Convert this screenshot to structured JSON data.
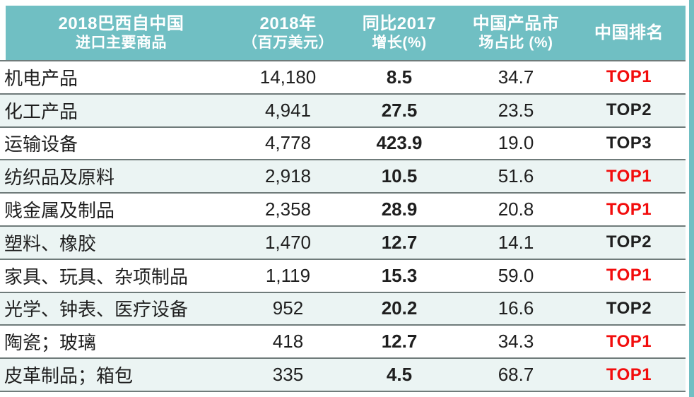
{
  "colors": {
    "accent": "#70bfc3",
    "row_tint": "#ebf4f3",
    "line": "#6f7b7a",
    "rank_red": "#f20d0d",
    "text": "#1f1f1f",
    "header_text": "#ffffff"
  },
  "header": {
    "col1": {
      "line1": "2018巴西自中国",
      "line2": "进口主要商品"
    },
    "col2": {
      "line1": "2018年",
      "line2": "（百万美元）"
    },
    "col3": {
      "line1": "同比2017",
      "line2": "增长(%)"
    },
    "col4": {
      "line1": "中国产品市",
      "line2": "场占比 (%)"
    },
    "col5": {
      "line1": "中国排名",
      "line2": ""
    }
  },
  "chart_data": {
    "type": "table",
    "title": "2018巴西自中国进口主要商品",
    "columns": [
      "2018巴西自中国进口主要商品",
      "2018年（百万美元）",
      "同比2017增长(%)",
      "中国产品市场占比 (%)",
      "中国排名"
    ],
    "rows": [
      {
        "commodity": "机电产品",
        "imports_2018_musd": "14,180",
        "yoy_growth_pct": "8.5",
        "china_market_share_pct": "34.7",
        "china_rank": "TOP1",
        "rank_is_top1": true
      },
      {
        "commodity": "化工产品",
        "imports_2018_musd": "4,941",
        "yoy_growth_pct": "27.5",
        "china_market_share_pct": "23.5",
        "china_rank": "TOP2",
        "rank_is_top1": false
      },
      {
        "commodity": "运输设备",
        "imports_2018_musd": "4,778",
        "yoy_growth_pct": "423.9",
        "china_market_share_pct": "19.0",
        "china_rank": "TOP3",
        "rank_is_top1": false
      },
      {
        "commodity": "纺织品及原料",
        "imports_2018_musd": "2,918",
        "yoy_growth_pct": "10.5",
        "china_market_share_pct": "51.6",
        "china_rank": "TOP1",
        "rank_is_top1": true
      },
      {
        "commodity": "贱金属及制品",
        "imports_2018_musd": "2,358",
        "yoy_growth_pct": "28.9",
        "china_market_share_pct": "20.8",
        "china_rank": "TOP1",
        "rank_is_top1": true
      },
      {
        "commodity": "塑料、橡胶",
        "imports_2018_musd": "1,470",
        "yoy_growth_pct": "12.7",
        "china_market_share_pct": "14.1",
        "china_rank": "TOP2",
        "rank_is_top1": false
      },
      {
        "commodity": "家具、玩具、杂项制品",
        "imports_2018_musd": "1,119",
        "yoy_growth_pct": "15.3",
        "china_market_share_pct": "59.0",
        "china_rank": "TOP1",
        "rank_is_top1": true
      },
      {
        "commodity": "光学、钟表、医疗设备",
        "imports_2018_musd": "952",
        "yoy_growth_pct": "20.2",
        "china_market_share_pct": "16.6",
        "china_rank": "TOP2",
        "rank_is_top1": false
      },
      {
        "commodity": "陶瓷；玻璃",
        "imports_2018_musd": "418",
        "yoy_growth_pct": "12.7",
        "china_market_share_pct": "34.3",
        "china_rank": "TOP1",
        "rank_is_top1": true
      },
      {
        "commodity": "皮革制品；箱包",
        "imports_2018_musd": "335",
        "yoy_growth_pct": "4.5",
        "china_market_share_pct": "68.7",
        "china_rank": "TOP1",
        "rank_is_top1": true
      }
    ]
  }
}
